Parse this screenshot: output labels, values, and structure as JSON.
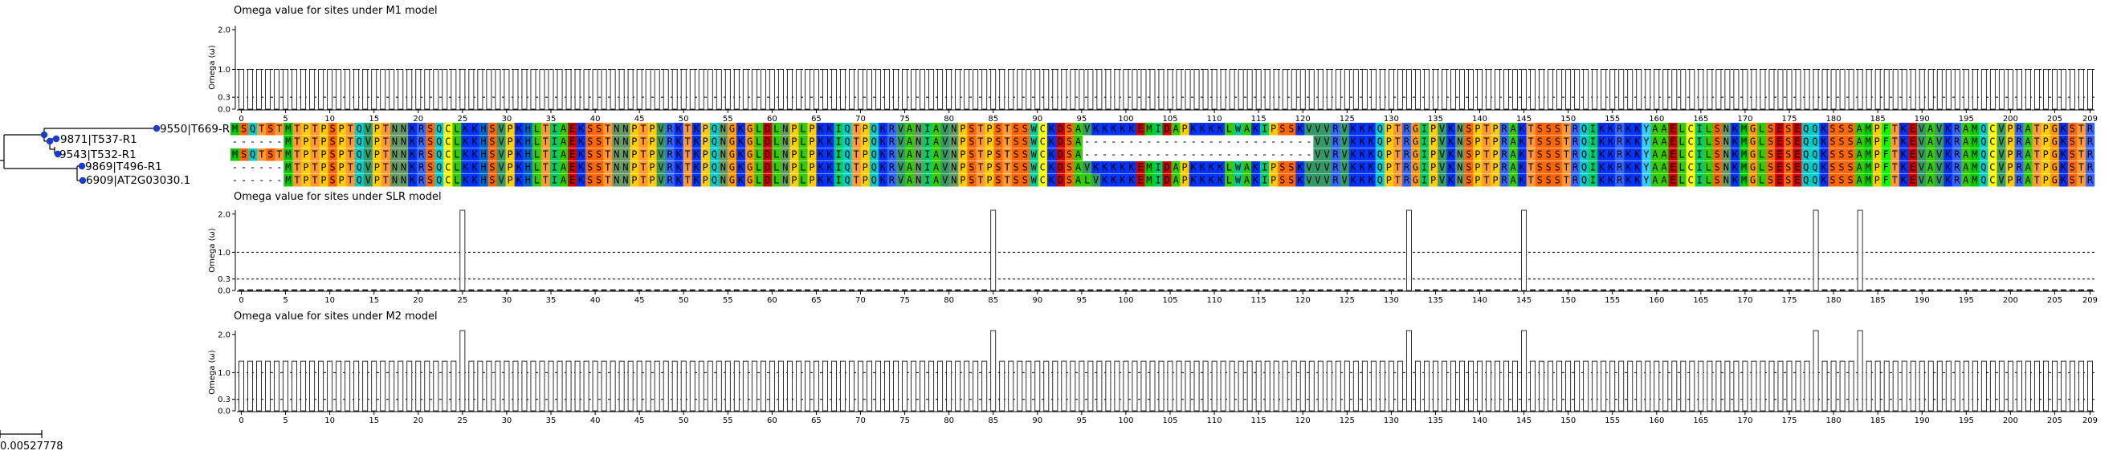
{
  "chart_data": [
    {
      "type": "bar",
      "title": "Omega value for sites under M1 model",
      "ylabel": "Omega (ω)",
      "yticks": [
        "2.0",
        "1.0",
        "0.3",
        "0.0"
      ],
      "ylim": [
        0,
        2.1
      ],
      "xlim": [
        0,
        209
      ],
      "xticks": [
        0,
        5,
        10,
        15,
        20,
        25,
        30,
        35,
        40,
        45,
        50,
        55,
        60,
        65,
        70,
        75,
        80,
        85,
        90,
        95,
        100,
        105,
        110,
        115,
        120,
        125,
        130,
        135,
        140,
        145,
        150,
        155,
        160,
        165,
        170,
        175,
        180,
        185,
        190,
        195,
        200,
        205,
        209
      ],
      "default_value": 1.0,
      "overrides": [],
      "reference_lines": [
        1.0,
        0.3
      ]
    },
    {
      "type": "bar",
      "title": "Omega value for sites under SLR model",
      "ylabel": "Omega (ω)",
      "yticks": [
        "2.0",
        "1.0",
        "0.3",
        "0.0"
      ],
      "ylim": [
        0,
        2.1
      ],
      "xlim": [
        0,
        209
      ],
      "xticks": [
        0,
        5,
        10,
        15,
        20,
        25,
        30,
        35,
        40,
        45,
        50,
        55,
        60,
        65,
        70,
        75,
        80,
        85,
        90,
        95,
        100,
        105,
        110,
        115,
        120,
        125,
        130,
        135,
        140,
        145,
        150,
        155,
        160,
        165,
        170,
        175,
        180,
        185,
        190,
        195,
        200,
        205,
        209
      ],
      "default_value": 0.02,
      "overrides": [
        [
          25,
          2.1
        ],
        [
          85,
          2.1
        ],
        [
          132,
          2.1
        ],
        [
          145,
          2.1
        ],
        [
          178,
          2.1
        ],
        [
          183,
          2.1
        ]
      ],
      "reference_lines": [
        1.0,
        0.3
      ]
    },
    {
      "type": "bar",
      "title": "Omega value for sites under M2 model",
      "ylabel": "Omega (ω)",
      "yticks": [
        "2.0",
        "1.0",
        "0.3",
        "0.0"
      ],
      "ylim": [
        0,
        2.1
      ],
      "xlim": [
        0,
        209
      ],
      "xticks": [
        0,
        5,
        10,
        15,
        20,
        25,
        30,
        35,
        40,
        45,
        50,
        55,
        60,
        65,
        70,
        75,
        80,
        85,
        90,
        95,
        100,
        105,
        110,
        115,
        120,
        125,
        130,
        135,
        140,
        145,
        150,
        155,
        160,
        165,
        170,
        175,
        180,
        185,
        190,
        195,
        200,
        205,
        209
      ],
      "default_value": 1.3,
      "overrides": [
        [
          25,
          2.1
        ],
        [
          85,
          2.1
        ],
        [
          132,
          2.1
        ],
        [
          145,
          2.1
        ],
        [
          178,
          2.1
        ],
        [
          183,
          2.1
        ]
      ],
      "reference_lines": [
        1.0,
        0.3
      ]
    }
  ],
  "alignment": {
    "sequences": [
      {
        "label": "9550|T669-R1",
        "seq": "MSQTSTMTPTPSPTQVPTNNKRSQCLKKHSVPKHLTIAEKSSTNNPTPVRKTKPQNGKGLDLNPLPKKIQTPQKRVANIAVNPSTPSTSSWCKDSAVKKKKKEMIDAPKKKKLWAKIPSSKVVVRVKKKQPTRGIPVKNSPTPRAKTSSSTRQIKKRKKYAAELCILSNKMGLSESEQQKSSSAMPFTKEVAVKRAMQCVPRATPGKSTRKSLNHGQPKKKHKRVSSSTKEALIKRKKMSRVKSSPR"
      },
      {
        "label": "9871|T537-R1",
        "seq": "------MTPTPSPTQVPTNNKRSQCLKKHSVPKHLTIAEKSSTNNPTPVRKTKPQNGKGLDLNPLPKKIQTPQKRVANIAVNPSTPSTSSWCKDSA--------------------------VVRVKKKQPTRGIPVKNSPTPRAKTSSSTRQIKKRKKYAAELCILSNKMGLSESEQQKSSSAMPFTKEVAVKRAMQCVPRATPGKSTRKSLNHGQPKKKHKRVSSSTKEALIKRKKMSRVKSSPR"
      },
      {
        "label": "9543|T532-R1",
        "seq": "MSQTSTMTPTPSPTQVPTNNKRSQCLKKHSVPKHLTIAEKSSTNNPTPVRKTKPQNGKGLDLNPLPKKIQTPQKRVANIAVNPSTPSTSSWCKDSA--------------------------VVRVKKKQPTRGIPVKNSPTPRAKTSSSTRQIKKRKKYAAELCILSNKMGLSESEQQKSSSAMPFTKEVAVKRAMQCVPRATPGKSTRKSLNHGQPKKKHKRVSSSTKEALIKRKKMSRVKSSPR"
      },
      {
        "label": "9869|T496-R1",
        "seq": "------MTPTPSPTQVPTNNKRSQCLKKHSVPKHLTIAEKSSTNNPTPVRKTKPQNGKGLDLNPLPKKIQTPQKRVANIAVNPSTPSTSSWCKDSAVKKKKKEMIDAPKKKKLWAKIPSSKVVVRVKKKQPTRGIPVKNSPTPRAKTSSSTRQIKKRKKYAAELCILSNKMGLSESEQQKSSSAMPFTKEVAVKRAMQCVPRATPGKSTRKSLNHGQPKKKHKRVSSSTKEALIKRKKMSRVKSSPR"
      },
      {
        "label": "6909|AT2G03030.1",
        "seq": "------MTPTPSPTQVPTNNKRSQCLKKHSVPKHLTIAEKSSTNNPTPVRKTKPQNGKGLDLNPLPKKIQTPQKRVANIAVNPSTPSTSSWCKDSALVKKKKEMIDAPKKKKLWAKIPSSKVVVRVKKKQPTRGIPVKNSPTPRAKTSSSTRQIKKRKKYAAELCILSNKMGLSESEQQKSSSAMPFTKEVAVKRAMQCVPRATPGKSTRKSLNHGQPKKKHKRVSSSTKEALIKRKKMSRVKSSPR"
      }
    ],
    "colors": {
      "A": "#33cc00",
      "C": "#ffff00",
      "D": "#cc0000",
      "E": "#cc0000",
      "F": "#00ff00",
      "G": "#ff9900",
      "H": "#0066cc",
      "I": "#00cc66",
      "K": "#0033ff",
      "L": "#33cc00",
      "M": "#00cc00",
      "N": "#669966",
      "P": "#ffcc00",
      "Q": "#00cccc",
      "R": "#3366ff",
      "S": "#ff6600",
      "T": "#ff9933",
      "V": "#339966",
      "W": "#00cc99",
      "Y": "#33ccff",
      "-": "#ffffff"
    }
  },
  "tree": {
    "scale_label": "0.00527778",
    "node_color": "#1a3ccf"
  }
}
